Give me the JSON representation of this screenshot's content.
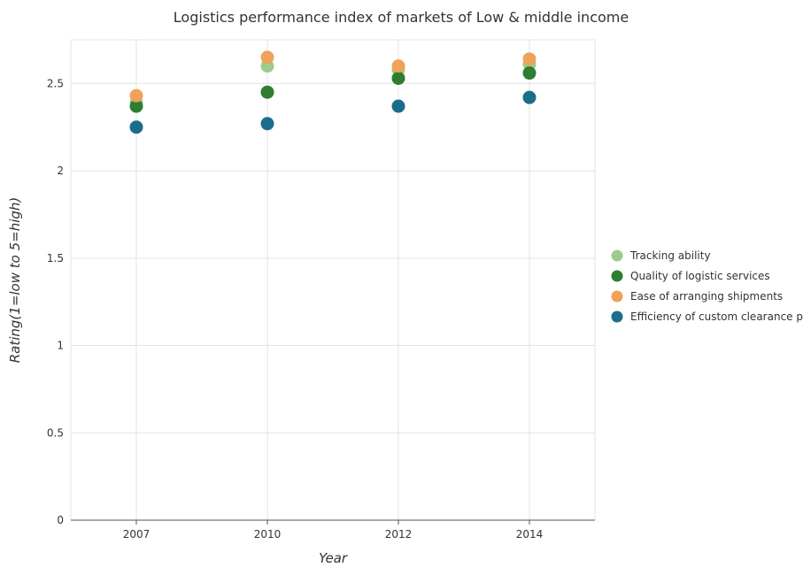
{
  "chart_data": {
    "type": "scatter",
    "title": "Logistics performance index of markets of Low & middle income",
    "xlabel": "Year",
    "ylabel": "Rating(1=low to 5=high)",
    "categories": [
      "2007",
      "2010",
      "2012",
      "2014"
    ],
    "ylim": [
      0,
      2.75
    ],
    "yticks": [
      0,
      0.5,
      1,
      1.5,
      2,
      2.5
    ],
    "ytick_labels": [
      "0",
      "0.5",
      "1",
      "1.5",
      "2",
      "2.5"
    ],
    "grid": true,
    "legend_position": "right",
    "series": [
      {
        "name": "Tracking ability",
        "color": "#9ccb8c",
        "values": [
          2.39,
          2.6,
          2.58,
          2.61
        ]
      },
      {
        "name": "Quality of logistic services",
        "color": "#2e7d32",
        "values": [
          2.37,
          2.45,
          2.53,
          2.56
        ]
      },
      {
        "name": "Ease of arranging shipments",
        "color": "#f0a15a",
        "values": [
          2.43,
          2.65,
          2.6,
          2.64
        ]
      },
      {
        "name": "Efficiency of custom clearance process",
        "color": "#1a6e8c",
        "values": [
          2.25,
          2.27,
          2.37,
          2.42
        ]
      }
    ]
  }
}
